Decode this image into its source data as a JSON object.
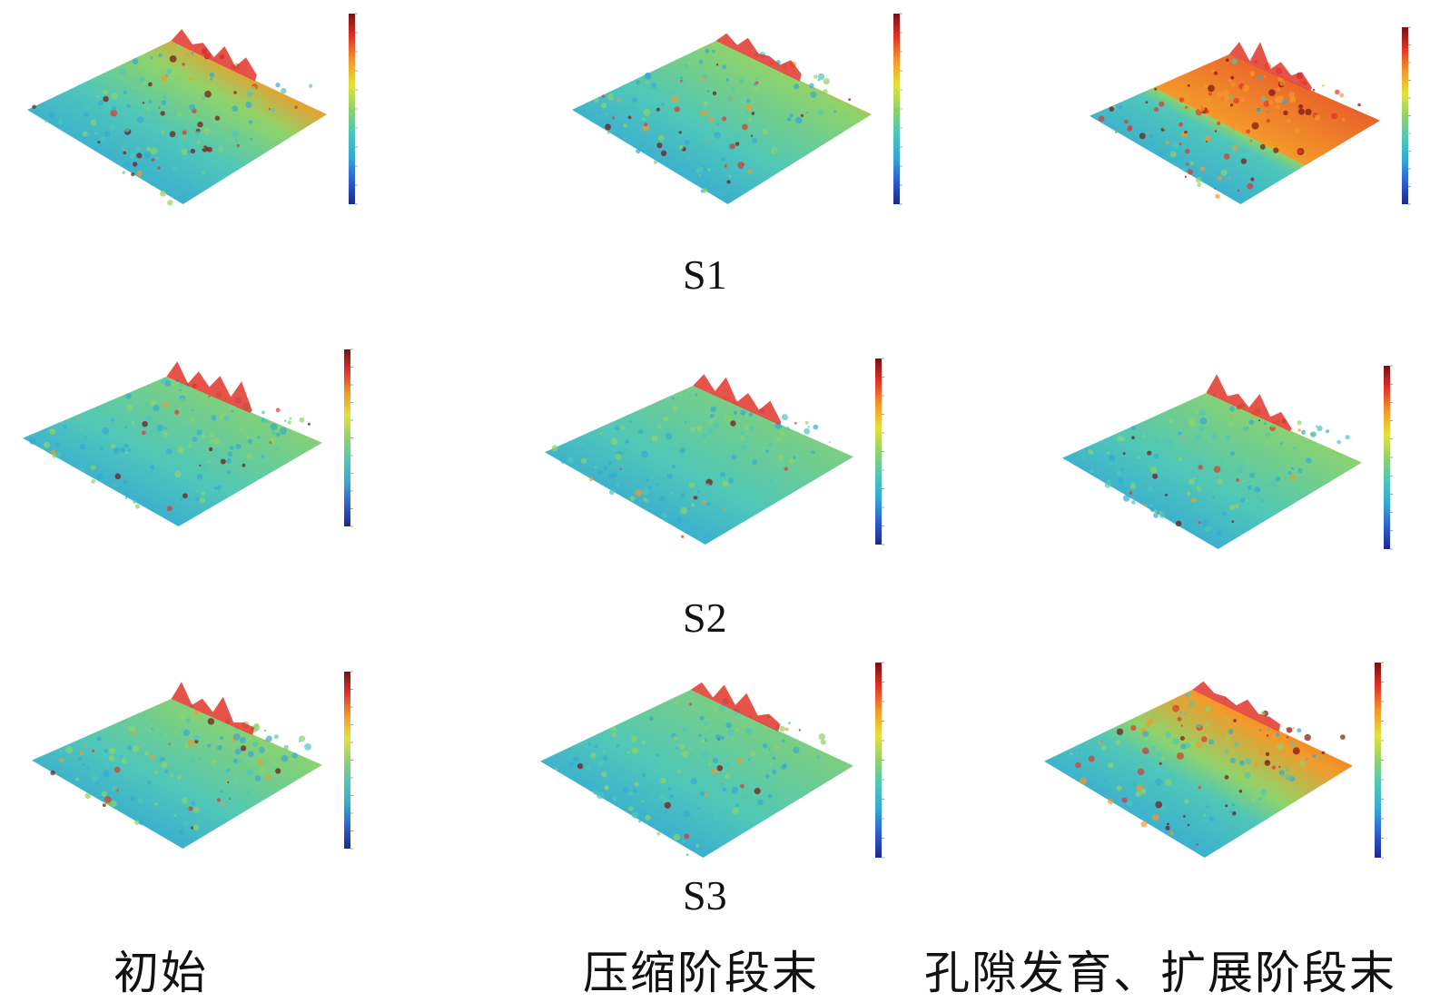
{
  "colormap": [
    "#1b2a8a",
    "#2f5fd0",
    "#35a9d6",
    "#4fc7b8",
    "#8fd36a",
    "#e4e23b",
    "#f39a2a",
    "#e2352a",
    "#7a0f12"
  ],
  "row_labels": [
    "S1",
    "S2",
    "S3"
  ],
  "column_labels": [
    "初始",
    "压缩阶段末",
    "孔隙发育、扩展阶段末"
  ],
  "panels": [
    {
      "row": 0,
      "col": 0,
      "hot_fraction": 0.35
    },
    {
      "row": 0,
      "col": 1,
      "hot_fraction": 0.25
    },
    {
      "row": 0,
      "col": 2,
      "hot_fraction": 0.85
    },
    {
      "row": 1,
      "col": 0,
      "hot_fraction": 0.15
    },
    {
      "row": 1,
      "col": 1,
      "hot_fraction": 0.08
    },
    {
      "row": 1,
      "col": 2,
      "hot_fraction": 0.2
    },
    {
      "row": 2,
      "col": 0,
      "hot_fraction": 0.2
    },
    {
      "row": 2,
      "col": 1,
      "hot_fraction": 0.1
    },
    {
      "row": 2,
      "col": 2,
      "hot_fraction": 0.45
    }
  ]
}
